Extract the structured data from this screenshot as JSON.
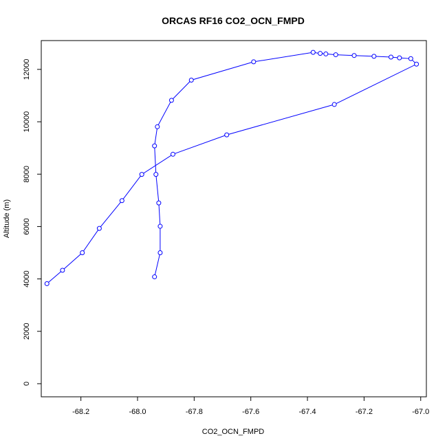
{
  "chart_data": {
    "type": "line",
    "title": "ORCAS RF16 CO2_OCN_FMPD",
    "xlabel": "CO2_OCN_FMPD",
    "ylabel": "Altitude (m)",
    "xlim": [
      -68.34,
      -66.98
    ],
    "ylim": [
      -500,
      13100
    ],
    "x_ticks": [
      -68.2,
      -68.0,
      -67.8,
      -67.6,
      -67.4,
      -67.2,
      -67.0
    ],
    "x_tick_labels": [
      "-68.2",
      "-68.0",
      "-67.8",
      "-67.6",
      "-67.4",
      "-67.2",
      "-67.0"
    ],
    "y_ticks": [
      0,
      2000,
      4000,
      6000,
      8000,
      10000,
      12000
    ],
    "y_tick_labels": [
      "0",
      "2000",
      "4000",
      "6000",
      "8000",
      "10000",
      "12000"
    ],
    "grid": false,
    "series": [
      {
        "color": "#0000ff",
        "marker": "open-circle",
        "points": [
          {
            "x": -67.94,
            "y": 4080
          },
          {
            "x": -67.92,
            "y": 5000
          },
          {
            "x": -67.92,
            "y": 6010
          },
          {
            "x": -67.925,
            "y": 6900
          },
          {
            "x": -67.935,
            "y": 7990
          },
          {
            "x": -67.94,
            "y": 9080
          },
          {
            "x": -67.93,
            "y": 9810
          },
          {
            "x": -67.88,
            "y": 10820
          },
          {
            "x": -67.81,
            "y": 11590
          },
          {
            "x": -67.59,
            "y": 12290
          },
          {
            "x": -67.38,
            "y": 12650
          },
          {
            "x": -67.355,
            "y": 12610
          },
          {
            "x": -67.335,
            "y": 12590
          },
          {
            "x": -67.3,
            "y": 12560
          },
          {
            "x": -67.235,
            "y": 12530
          },
          {
            "x": -67.165,
            "y": 12500
          },
          {
            "x": -67.105,
            "y": 12470
          },
          {
            "x": -67.075,
            "y": 12440
          },
          {
            "x": -67.035,
            "y": 12410
          },
          {
            "x": -67.015,
            "y": 12200
          },
          {
            "x": -67.305,
            "y": 10660
          },
          {
            "x": -67.685,
            "y": 9500
          },
          {
            "x": -67.875,
            "y": 8760
          },
          {
            "x": -67.985,
            "y": 7990
          },
          {
            "x": -68.055,
            "y": 6990
          },
          {
            "x": -68.135,
            "y": 5930
          },
          {
            "x": -68.195,
            "y": 5000
          },
          {
            "x": -68.265,
            "y": 4330
          },
          {
            "x": -68.32,
            "y": 3820
          }
        ]
      }
    ]
  }
}
